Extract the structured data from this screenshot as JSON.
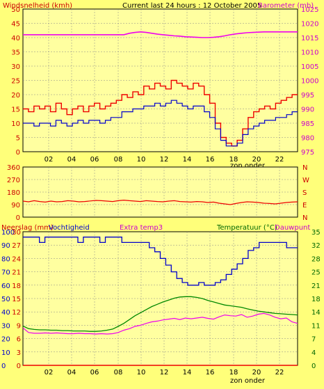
{
  "header": {
    "left_label": "Windsnelheid (kmh)",
    "center_label": "Current last 24 hours : 12 October 2005",
    "right_label": "Barometer (mb)"
  },
  "colors": {
    "background": "#ffff7a",
    "plot_bg": "#ffffa0",
    "wind_gust": "#ee0000",
    "wind_avg": "#0000cc",
    "barometer": "#ee00ee",
    "direction": "#ee0000",
    "humidity": "#0000cc",
    "temperature": "#008800",
    "dewpoint": "#ee00ee",
    "rain": "#ee0000",
    "grid": "#888888"
  },
  "chart_data": [
    {
      "type": "line",
      "name": "wind-barometer",
      "x_ticks": [
        "02",
        "04",
        "06",
        "08",
        "10",
        "12",
        "14",
        "16",
        "18",
        "20",
        "22"
      ],
      "x_footer": "zon onder",
      "y_left_ticks": [
        "0",
        "5",
        "10",
        "15",
        "20",
        "25",
        "30",
        "35",
        "40",
        "45",
        "50"
      ],
      "y_left_lim": [
        0,
        50
      ],
      "y_right_ticks": [
        "975",
        "980",
        "985",
        "990",
        "995",
        "1000",
        "1005",
        "1010",
        "1015",
        "1020",
        "1025"
      ],
      "y_right_lim": [
        975,
        1025
      ],
      "grid": true,
      "series": [
        {
          "role": "gust",
          "axis": "left",
          "values": [
            15,
            14,
            16,
            15,
            16,
            14,
            17,
            15,
            13,
            15,
            16,
            14,
            16,
            17,
            15,
            16,
            17,
            18,
            20,
            19,
            21,
            20,
            23,
            22,
            24,
            23,
            22,
            25,
            24,
            23,
            22,
            24,
            23,
            20,
            17,
            10,
            5,
            3,
            2,
            4,
            8,
            12,
            14,
            15,
            16,
            15,
            17,
            18,
            19,
            20
          ]
        },
        {
          "role": "average",
          "axis": "left",
          "values": [
            10,
            10,
            9,
            10,
            10,
            9,
            11,
            10,
            9,
            10,
            11,
            10,
            11,
            11,
            10,
            11,
            12,
            12,
            14,
            14,
            15,
            15,
            16,
            16,
            17,
            16,
            17,
            18,
            17,
            16,
            15,
            16,
            16,
            14,
            12,
            8,
            4,
            2,
            2,
            3,
            6,
            8,
            9,
            10,
            11,
            11,
            12,
            12,
            13,
            14
          ]
        },
        {
          "role": "barometer",
          "axis": "right",
          "values": [
            1016,
            1016,
            1016,
            1016,
            1016,
            1016,
            1016,
            1016,
            1016,
            1016,
            1016,
            1016,
            1016,
            1016,
            1016,
            1016,
            1016,
            1016,
            1016,
            1016.5,
            1016.8,
            1017,
            1016.8,
            1016.5,
            1016.2,
            1016,
            1015.8,
            1015.6,
            1015.5,
            1015.3,
            1015.2,
            1015.1,
            1015,
            1015,
            1015.1,
            1015.3,
            1015.6,
            1016,
            1016.3,
            1016.5,
            1016.7,
            1016.8,
            1016.9,
            1017,
            1017,
            1017,
            1017,
            1017,
            1017,
            1017
          ]
        }
      ]
    },
    {
      "type": "line",
      "name": "wind-direction",
      "y_ticks": [
        "0",
        "90",
        "180",
        "270",
        "360"
      ],
      "ylim": [
        0,
        360
      ],
      "right_labels": [
        "N",
        "W",
        "S",
        "E",
        "N"
      ],
      "x_ticks": [],
      "grid": true,
      "series": [
        {
          "role": "direction",
          "values": [
            115,
            110,
            118,
            112,
            108,
            115,
            110,
            112,
            118,
            115,
            110,
            112,
            116,
            120,
            118,
            115,
            112,
            118,
            122,
            118,
            115,
            112,
            118,
            115,
            112,
            110,
            115,
            118,
            112,
            110,
            108,
            112,
            110,
            105,
            108,
            100,
            95,
            90,
            98,
            105,
            110,
            108,
            105,
            100,
            98,
            95,
            100,
            105,
            108,
            110
          ]
        }
      ]
    },
    {
      "type": "line",
      "name": "temperature-humidity",
      "header_left": "Neerslag (mm)",
      "header_left2": "Vochtigheid",
      "header_center": "Extra temp3",
      "header_right": "Temperatuur (°C)",
      "header_right2": "Dauwpunt",
      "x_ticks": [
        "02",
        "04",
        "06",
        "08",
        "10",
        "12",
        "14",
        "16",
        "18",
        "20",
        "22"
      ],
      "x_footer": "zon onder",
      "y_left_ticks": [
        "0",
        "10",
        "20",
        "30",
        "40",
        "50",
        "60",
        "70",
        "80",
        "90",
        "100"
      ],
      "y_left_lim": [
        0,
        100
      ],
      "y_left2_ticks": [
        "0",
        "3",
        "6",
        "9",
        "12",
        "15",
        "18",
        "21",
        "24",
        "27",
        "30"
      ],
      "y_right_ticks": [
        "0",
        "4",
        "7",
        "11",
        "14",
        "18",
        "21",
        "25",
        "28",
        "32",
        "35"
      ],
      "y_right_lim": [
        0,
        35
      ],
      "grid": true,
      "series": [
        {
          "role": "humidity",
          "axis": "left",
          "values": [
            96,
            96,
            96,
            92,
            96,
            96,
            96,
            96,
            96,
            96,
            92,
            96,
            96,
            96,
            92,
            96,
            96,
            96,
            92,
            92,
            92,
            92,
            92,
            88,
            85,
            80,
            75,
            70,
            65,
            62,
            60,
            60,
            62,
            60,
            60,
            62,
            64,
            68,
            72,
            76,
            80,
            86,
            88,
            92,
            92,
            92,
            92,
            92,
            88,
            88
          ]
        },
        {
          "role": "temperature",
          "axis": "right",
          "values": [
            10.3,
            9.6,
            9.4,
            9.3,
            9.3,
            9.2,
            9.2,
            9.1,
            9.1,
            9.0,
            9.0,
            9.0,
            8.9,
            8.9,
            9.0,
            9.2,
            9.5,
            10.2,
            11.0,
            12.0,
            13.0,
            13.8,
            14.6,
            15.4,
            16.0,
            16.6,
            17.1,
            17.6,
            17.9,
            18.0,
            18.0,
            17.8,
            17.5,
            17.0,
            16.6,
            16.2,
            15.8,
            15.6,
            15.4,
            15.2,
            14.8,
            14.5,
            14.2,
            14.0,
            13.8,
            13.6,
            13.5,
            13.4,
            13.3,
            13.2
          ]
        },
        {
          "role": "dewpoint",
          "axis": "right",
          "values": [
            9.8,
            8.6,
            8.4,
            8.4,
            8.5,
            8.4,
            8.5,
            8.4,
            8.3,
            8.3,
            8.4,
            8.3,
            8.3,
            8.2,
            8.3,
            8.2,
            8.3,
            8.6,
            9.2,
            9.6,
            10.2,
            10.5,
            11.0,
            11.4,
            11.6,
            11.9,
            12.1,
            12.3,
            12.0,
            12.4,
            12.2,
            12.4,
            12.6,
            12.3,
            12.1,
            12.7,
            13.2,
            13.0,
            12.9,
            13.3,
            12.6,
            12.9,
            13.4,
            13.6,
            13.2,
            12.6,
            12.2,
            12.4,
            11.4,
            11.0
          ]
        },
        {
          "role": "rain",
          "axis": "left2",
          "values": [
            0,
            0,
            0,
            0,
            0,
            0,
            0,
            0,
            0,
            0,
            0,
            0,
            0,
            0,
            0,
            0,
            0,
            0,
            0,
            0,
            0,
            0,
            0,
            0,
            0,
            0,
            0,
            0,
            0,
            0,
            0,
            0,
            0,
            0,
            0,
            0,
            0,
            0,
            0,
            0,
            0,
            0,
            0,
            0,
            0,
            0,
            0,
            0,
            0,
            0
          ]
        }
      ]
    }
  ]
}
